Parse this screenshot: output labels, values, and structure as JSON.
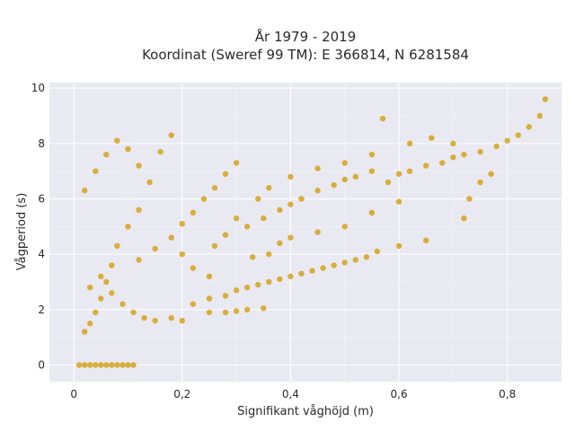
{
  "chart_data": {
    "type": "scatter",
    "title": "År 1979 - 2019",
    "subtitle": "Koordinat (Sweref 99 TM): E 366814, N 6281584",
    "xlabel": "Signifikant våghöjd (m)",
    "ylabel": "Vågperiod (s)",
    "xlim": [
      -0.045,
      0.9
    ],
    "ylim": [
      -0.6,
      10.2
    ],
    "x_ticks": [
      0,
      0.2,
      0.4,
      0.6,
      0.8
    ],
    "x_tick_labels": [
      "0",
      "0,2",
      "0,4",
      "0,6",
      "0,8"
    ],
    "y_ticks": [
      0,
      2,
      4,
      6,
      8,
      10
    ],
    "y_tick_labels": [
      "0",
      "2",
      "4",
      "6",
      "8",
      "10"
    ],
    "grid": true,
    "background": "#e9e9f1",
    "point_color": "#d4a21c",
    "series": [
      {
        "points": [
          [
            0.01,
            0.0
          ],
          [
            0.02,
            0.0
          ],
          [
            0.03,
            0.0
          ],
          [
            0.04,
            0.0
          ],
          [
            0.05,
            0.0
          ],
          [
            0.06,
            0.0
          ],
          [
            0.07,
            0.0
          ],
          [
            0.08,
            0.0
          ],
          [
            0.09,
            0.0
          ],
          [
            0.1,
            0.0
          ],
          [
            0.11,
            0.0
          ],
          [
            0.02,
            1.2
          ],
          [
            0.03,
            1.5
          ],
          [
            0.04,
            1.9
          ],
          [
            0.05,
            2.4
          ],
          [
            0.06,
            3.0
          ],
          [
            0.07,
            3.6
          ],
          [
            0.08,
            4.3
          ],
          [
            0.1,
            5.0
          ],
          [
            0.12,
            5.6
          ],
          [
            0.02,
            6.3
          ],
          [
            0.04,
            7.0
          ],
          [
            0.06,
            7.6
          ],
          [
            0.08,
            8.1
          ],
          [
            0.1,
            7.8
          ],
          [
            0.12,
            7.2
          ],
          [
            0.14,
            6.6
          ],
          [
            0.16,
            7.7
          ],
          [
            0.18,
            8.3
          ],
          [
            0.03,
            2.8
          ],
          [
            0.05,
            3.2
          ],
          [
            0.07,
            2.6
          ],
          [
            0.09,
            2.2
          ],
          [
            0.11,
            1.9
          ],
          [
            0.13,
            1.7
          ],
          [
            0.15,
            1.6
          ],
          [
            0.18,
            1.7
          ],
          [
            0.2,
            1.6
          ],
          [
            0.12,
            3.8
          ],
          [
            0.15,
            4.2
          ],
          [
            0.18,
            4.6
          ],
          [
            0.2,
            5.1
          ],
          [
            0.22,
            5.5
          ],
          [
            0.24,
            6.0
          ],
          [
            0.26,
            6.4
          ],
          [
            0.28,
            6.9
          ],
          [
            0.3,
            7.3
          ],
          [
            0.22,
            2.2
          ],
          [
            0.25,
            2.4
          ],
          [
            0.28,
            2.5
          ],
          [
            0.3,
            2.7
          ],
          [
            0.32,
            2.8
          ],
          [
            0.34,
            2.9
          ],
          [
            0.36,
            3.0
          ],
          [
            0.38,
            3.1
          ],
          [
            0.4,
            3.2
          ],
          [
            0.25,
            1.9
          ],
          [
            0.28,
            1.9
          ],
          [
            0.3,
            1.95
          ],
          [
            0.32,
            2.0
          ],
          [
            0.35,
            2.05
          ],
          [
            0.42,
            3.3
          ],
          [
            0.44,
            3.4
          ],
          [
            0.46,
            3.5
          ],
          [
            0.48,
            3.6
          ],
          [
            0.5,
            3.7
          ],
          [
            0.52,
            3.8
          ],
          [
            0.54,
            3.9
          ],
          [
            0.56,
            4.1
          ],
          [
            0.6,
            4.3
          ],
          [
            0.65,
            4.5
          ],
          [
            0.32,
            5.0
          ],
          [
            0.35,
            5.3
          ],
          [
            0.38,
            5.6
          ],
          [
            0.4,
            5.8
          ],
          [
            0.42,
            6.0
          ],
          [
            0.45,
            6.3
          ],
          [
            0.48,
            6.5
          ],
          [
            0.5,
            6.7
          ],
          [
            0.52,
            6.8
          ],
          [
            0.55,
            7.0
          ],
          [
            0.58,
            6.6
          ],
          [
            0.6,
            6.9
          ],
          [
            0.62,
            7.0
          ],
          [
            0.65,
            7.2
          ],
          [
            0.68,
            7.3
          ],
          [
            0.7,
            7.5
          ],
          [
            0.72,
            7.6
          ],
          [
            0.75,
            7.7
          ],
          [
            0.78,
            7.9
          ],
          [
            0.8,
            8.1
          ],
          [
            0.82,
            8.3
          ],
          [
            0.84,
            8.6
          ],
          [
            0.86,
            9.0
          ],
          [
            0.87,
            9.6
          ],
          [
            0.34,
            6.0
          ],
          [
            0.36,
            6.4
          ],
          [
            0.4,
            6.8
          ],
          [
            0.45,
            7.1
          ],
          [
            0.5,
            7.3
          ],
          [
            0.55,
            7.6
          ],
          [
            0.57,
            8.9
          ],
          [
            0.62,
            8.0
          ],
          [
            0.66,
            8.2
          ],
          [
            0.7,
            8.0
          ],
          [
            0.73,
            6.0
          ],
          [
            0.75,
            6.6
          ],
          [
            0.77,
            6.9
          ],
          [
            0.72,
            5.3
          ],
          [
            0.6,
            5.9
          ],
          [
            0.55,
            5.5
          ],
          [
            0.5,
            5.0
          ],
          [
            0.45,
            4.8
          ],
          [
            0.4,
            4.6
          ],
          [
            0.2,
            4.0
          ],
          [
            0.22,
            3.5
          ],
          [
            0.25,
            3.2
          ],
          [
            0.26,
            4.3
          ],
          [
            0.28,
            4.7
          ],
          [
            0.3,
            5.3
          ],
          [
            0.33,
            3.9
          ],
          [
            0.36,
            4.0
          ],
          [
            0.38,
            4.4
          ]
        ]
      }
    ]
  }
}
